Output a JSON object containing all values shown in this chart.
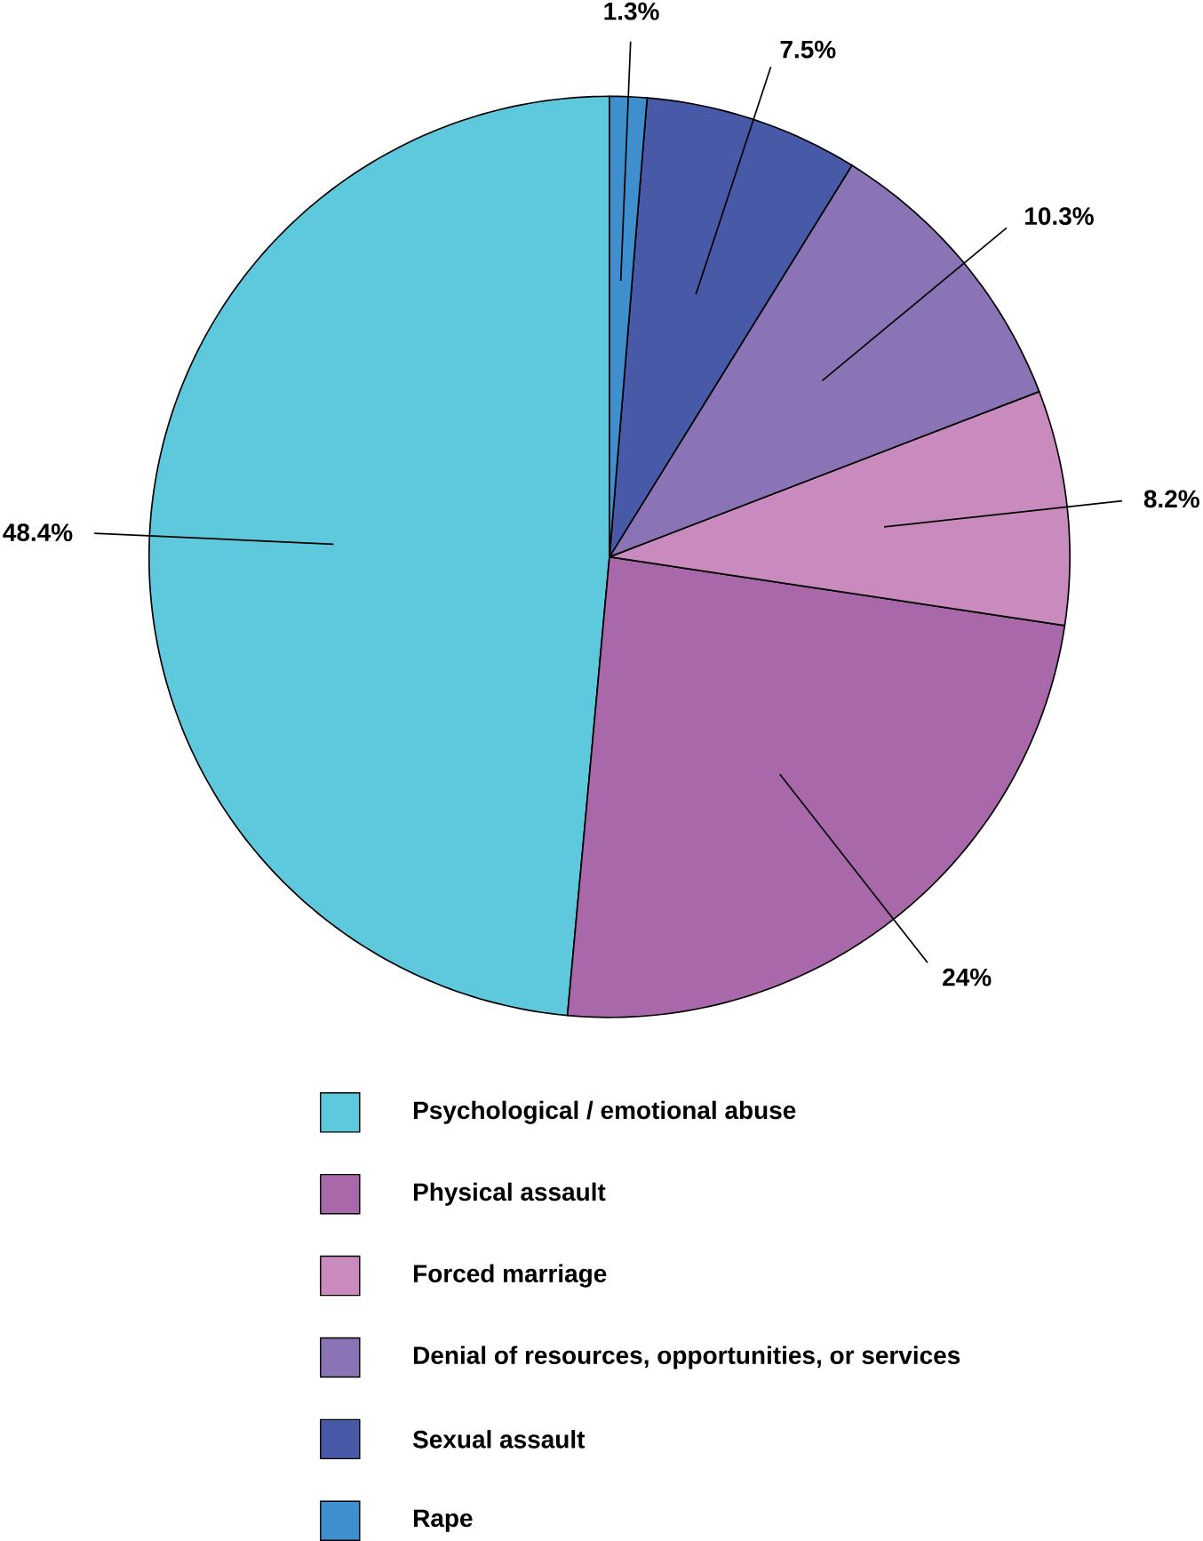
{
  "chart_data": {
    "type": "pie",
    "categories": [
      "Psychological / emotional abuse",
      "Physical assault",
      "Forced marriage",
      "Denial of resources, opportunities, or services",
      "Sexual assault",
      "Rape"
    ],
    "values": [
      48.4,
      24,
      8.2,
      10.3,
      7.5,
      1.3
    ],
    "value_labels": [
      "48.4%",
      "24%",
      "8.2%",
      "10.3%",
      "7.5%",
      "1.3%"
    ],
    "colors": [
      "#5ec8dc",
      "#a868aa",
      "#c98bbd",
      "#8a74b5",
      "#4859a8",
      "#3f8fcf"
    ],
    "legend": "bottom"
  }
}
